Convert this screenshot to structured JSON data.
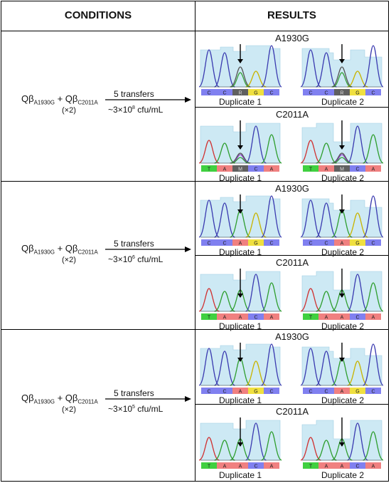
{
  "header": {
    "conditions": "CONDITIONS",
    "results": "RESULTS"
  },
  "rows": [
    {
      "condition": {
        "q1": "Qβ",
        "sub1": "A1930G",
        "plus": " + ",
        "q2": "Qβ",
        "sub2": "C2011A",
        "x2": "(×2)",
        "transfers": "5 transfers",
        "cfu_pre": "~3×10",
        "cfu_exp": "8",
        "cfu_post": " cfu/mL"
      },
      "panels": [
        {
          "title": "A1930G",
          "dup1": "Duplicate 1",
          "dup2": "Duplicate 2",
          "bases": [
            "C",
            "C",
            "R",
            "G",
            "C"
          ]
        },
        {
          "title": "C2011A",
          "dup1": "Duplicate 1",
          "dup2": "Duplicate 2",
          "bases": [
            "T",
            "A",
            "M",
            "C",
            "A"
          ]
        }
      ]
    },
    {
      "condition": {
        "q1": "Qβ",
        "sub1": "A1930G",
        "plus": " + ",
        "q2": "Qβ",
        "sub2": "C2011A",
        "x2": "(×2)",
        "transfers": "5 transfers",
        "cfu_pre": "~3×10",
        "cfu_exp": "6",
        "cfu_post": " cfu/mL"
      },
      "panels": [
        {
          "title": "A1930G",
          "dup1": "Duplicate 1",
          "dup2": "Duplicate 2",
          "bases": [
            "C",
            "C",
            "A",
            "G",
            "C"
          ]
        },
        {
          "title": "C2011A",
          "dup1": "Duplicate 1",
          "dup2": "Duplicate 2",
          "bases": [
            "T",
            "A",
            "A",
            "C",
            "A"
          ]
        }
      ]
    },
    {
      "condition": {
        "q1": "Qβ",
        "sub1": "A1930G",
        "plus": " + ",
        "q2": "Qβ",
        "sub2": "C2011A",
        "x2": "(×2)",
        "transfers": "5 transfers",
        "cfu_pre": "~3×10",
        "cfu_exp": "5",
        "cfu_post": " cfu/mL"
      },
      "panels": [
        {
          "title": "A1930G",
          "dup1": "Duplicate 1",
          "dup2": "Duplicate 2",
          "bases": [
            "C",
            "C",
            "A",
            "G",
            "C"
          ]
        },
        {
          "title": "C2011A",
          "dup1": "Duplicate 1",
          "dup2": "Duplicate 2",
          "bases": [
            "T",
            "A",
            "A",
            "C",
            "A"
          ]
        }
      ]
    }
  ],
  "colors": {
    "A": "#2e9e2e",
    "C": "#3a3ab0",
    "G": "#c8b400",
    "T": "#d03030",
    "R": "#555555",
    "M": "#555555",
    "A_box": "#f08080",
    "C_box": "#8080f0",
    "G_box": "#f0e040",
    "T_box": "#40d040",
    "amb_box": "#606060",
    "shade": "#cde9f4",
    "mixed": "#8a3fbf"
  }
}
